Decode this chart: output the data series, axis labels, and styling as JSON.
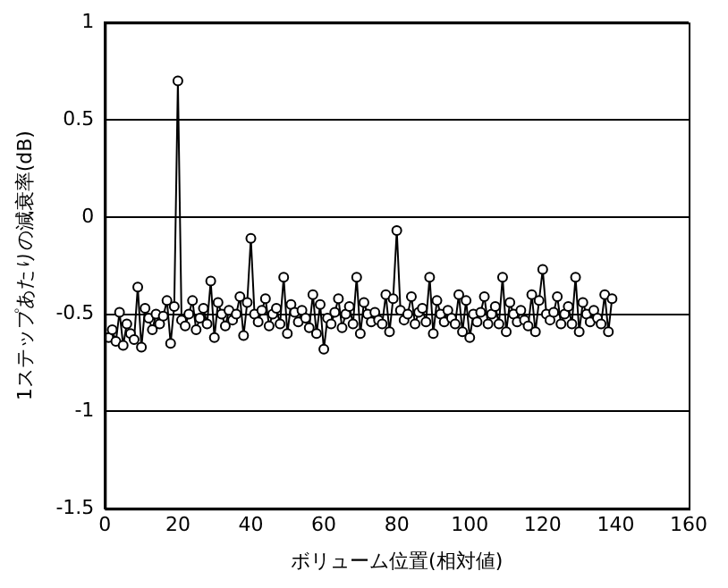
{
  "chart_data": {
    "type": "line",
    "xlabel": "ボリューム位置(相対値)",
    "ylabel": "1ステップあたりの減衰率(dB)",
    "xlim": [
      0,
      160
    ],
    "xticks": [
      0,
      20,
      40,
      60,
      80,
      100,
      120,
      140,
      160
    ],
    "ylim": [
      -1.5,
      1
    ],
    "yticks": [
      -1.5,
      -1,
      -0.5,
      0,
      0.5,
      1
    ],
    "grid": "y",
    "legend": false,
    "marker": "circle",
    "line_style": "solid",
    "series": [
      {
        "color": "#000000",
        "x": [
          1,
          2,
          3,
          4,
          5,
          6,
          7,
          8,
          9,
          10,
          11,
          12,
          13,
          14,
          15,
          16,
          17,
          18,
          19,
          20,
          21,
          22,
          23,
          24,
          25,
          26,
          27,
          28,
          29,
          30,
          31,
          32,
          33,
          34,
          35,
          36,
          37,
          38,
          39,
          40,
          41,
          42,
          43,
          44,
          45,
          46,
          47,
          48,
          49,
          50,
          51,
          52,
          53,
          54,
          55,
          56,
          57,
          58,
          59,
          60,
          61,
          62,
          63,
          64,
          65,
          66,
          67,
          68,
          69,
          70,
          71,
          72,
          73,
          74,
          75,
          76,
          77,
          78,
          79,
          80,
          81,
          82,
          83,
          84,
          85,
          86,
          87,
          88,
          89,
          90,
          91,
          92,
          93,
          94,
          95,
          96,
          97,
          98,
          99,
          100,
          101,
          102,
          103,
          104,
          105,
          106,
          107,
          108,
          109,
          110,
          111,
          112,
          113,
          114,
          115,
          116,
          117,
          118,
          119,
          120,
          121,
          122,
          123,
          124,
          125,
          126,
          127,
          128,
          129,
          130,
          131,
          132,
          133,
          134,
          135,
          136,
          137,
          138,
          139
        ],
        "values": [
          -0.62,
          -0.58,
          -0.64,
          -0.49,
          -0.66,
          -0.55,
          -0.6,
          -0.63,
          -0.36,
          -0.67,
          -0.47,
          -0.52,
          -0.58,
          -0.5,
          -0.55,
          -0.51,
          -0.43,
          -0.65,
          -0.46,
          0.7,
          -0.53,
          -0.56,
          -0.5,
          -0.43,
          -0.58,
          -0.52,
          -0.47,
          -0.55,
          -0.33,
          -0.62,
          -0.44,
          -0.5,
          -0.56,
          -0.48,
          -0.53,
          -0.5,
          -0.41,
          -0.61,
          -0.44,
          -0.11,
          -0.5,
          -0.54,
          -0.48,
          -0.42,
          -0.56,
          -0.5,
          -0.47,
          -0.55,
          -0.31,
          -0.6,
          -0.45,
          -0.49,
          -0.54,
          -0.48,
          -0.52,
          -0.57,
          -0.4,
          -0.6,
          -0.45,
          -0.68,
          -0.52,
          -0.55,
          -0.49,
          -0.42,
          -0.57,
          -0.5,
          -0.46,
          -0.55,
          -0.31,
          -0.6,
          -0.44,
          -0.5,
          -0.54,
          -0.49,
          -0.53,
          -0.55,
          -0.4,
          -0.59,
          -0.42,
          -0.07,
          -0.48,
          -0.53,
          -0.5,
          -0.41,
          -0.55,
          -0.49,
          -0.47,
          -0.54,
          -0.31,
          -0.6,
          -0.43,
          -0.5,
          -0.54,
          -0.48,
          -0.52,
          -0.55,
          -0.4,
          -0.59,
          -0.43,
          -0.62,
          -0.5,
          -0.54,
          -0.49,
          -0.41,
          -0.55,
          -0.5,
          -0.46,
          -0.55,
          -0.31,
          -0.59,
          -0.44,
          -0.5,
          -0.54,
          -0.48,
          -0.53,
          -0.56,
          -0.4,
          -0.59,
          -0.43,
          -0.27,
          -0.5,
          -0.53,
          -0.49,
          -0.41,
          -0.55,
          -0.5,
          -0.46,
          -0.55,
          -0.31,
          -0.59,
          -0.44,
          -0.5,
          -0.54,
          -0.48,
          -0.52,
          -0.55,
          -0.4,
          -0.59,
          -0.42
        ]
      }
    ]
  }
}
